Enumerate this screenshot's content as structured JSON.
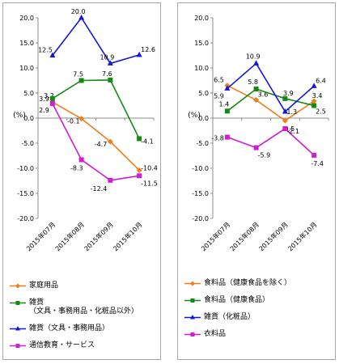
{
  "chart_data": [
    {
      "type": "line",
      "ylabel": "(%)",
      "ylim": [
        -20.0,
        20.0
      ],
      "ytick_step": 5,
      "grid": false,
      "legend_position": "bottom",
      "categories": [
        "2015年07月",
        "2015年08月",
        "2015年09月",
        "2015年10月"
      ],
      "series": [
        {
          "name": "家庭用品",
          "color": "#f07e1e",
          "marker": "diamond",
          "values": [
            3.2,
            -0.1,
            -4.7,
            -10.4
          ],
          "labels": [
            "3.2",
            "-0.1",
            "-4.7",
            "-10.4"
          ]
        },
        {
          "name": "雑貨\n（文具・事務用品・化粧品以外）",
          "color": "#138a13",
          "marker": "square",
          "values": [
            3.9,
            7.5,
            7.6,
            -4.1
          ],
          "labels": [
            "3.9",
            "7.5",
            "7.6",
            "-4.1"
          ]
        },
        {
          "name": "雑貨（文具・事務用品）",
          "color": "#1515d8",
          "marker": "triangle",
          "values": [
            12.5,
            20.0,
            10.9,
            12.6
          ],
          "labels": [
            "12.5",
            "20.0",
            "10.9",
            "12.6"
          ]
        },
        {
          "name": "通信教育・サービス",
          "color": "#d21bd2",
          "marker": "square",
          "values": [
            2.9,
            -8.3,
            -12.4,
            -11.5
          ],
          "labels": [
            "2.9",
            "-8.3",
            "-12.4",
            "-11.5"
          ]
        }
      ]
    },
    {
      "type": "line",
      "ylabel": "(%)",
      "ylim": [
        -20.0,
        20.0
      ],
      "ytick_step": 5,
      "grid": false,
      "legend_position": "bottom",
      "categories": [
        "2015年07月",
        "2015年08月",
        "2015年09月",
        "2015年10月"
      ],
      "series": [
        {
          "name": "食料品（健康食品を除く）",
          "color": "#f07e1e",
          "marker": "diamond",
          "values": [
            6.5,
            3.6,
            -0.5,
            3.4
          ],
          "labels": [
            "6.5",
            "3.6",
            "-0.5",
            "3.4"
          ]
        },
        {
          "name": "食料品（健康食品）",
          "color": "#138a13",
          "marker": "square",
          "values": [
            1.4,
            5.8,
            3.9,
            2.5
          ],
          "labels": [
            "1.4",
            "5.8",
            "3.9",
            "2.5"
          ]
        },
        {
          "name": "雑貨（化粧品）",
          "color": "#1515d8",
          "marker": "triangle",
          "values": [
            5.9,
            10.9,
            1.3,
            6.4
          ],
          "labels": [
            "5.9",
            "10.9",
            "1.3",
            "6.4"
          ]
        },
        {
          "name": "衣料品",
          "color": "#d21bd2",
          "marker": "square",
          "values": [
            -3.8,
            -5.9,
            -2.1,
            -7.4
          ],
          "labels": [
            "-3.8",
            "-5.9",
            "-2.1",
            "-7.4"
          ]
        }
      ]
    }
  ]
}
